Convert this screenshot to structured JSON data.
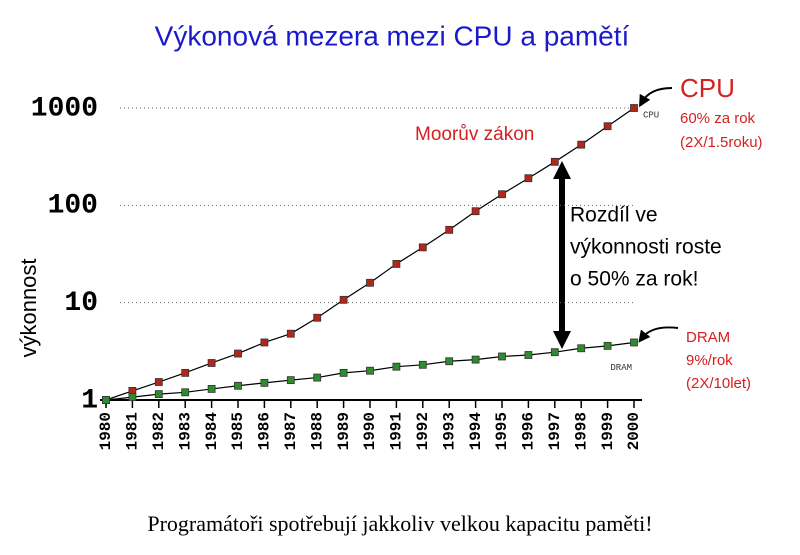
{
  "chart_data": {
    "type": "line",
    "title": "Výkonová mezera mezi CPU a pamětí",
    "y_label": "výkonnost",
    "caption": "Programátoři spotřebují jakkoliv velkou kapacitu paměti!",
    "x": [
      1980,
      1981,
      1982,
      1983,
      1984,
      1985,
      1986,
      1987,
      1988,
      1989,
      1990,
      1991,
      1992,
      1993,
      1994,
      1995,
      1996,
      1997,
      1998,
      1999,
      2000
    ],
    "xlim": [
      1980,
      2000
    ],
    "xticks": [
      1980,
      1981,
      1982,
      1983,
      1984,
      1985,
      1986,
      1987,
      1988,
      1989,
      1990,
      1991,
      1992,
      1993,
      1994,
      1995,
      1996,
      1997,
      1998,
      1999,
      2000
    ],
    "ylim": [
      1,
      1000
    ],
    "yticks": [
      1,
      10,
      100,
      1000
    ],
    "log_y": true,
    "grid": true,
    "line_color": "#000000",
    "series": [
      {
        "name": "CPU",
        "color": "#b3261e",
        "values": [
          1,
          1.24,
          1.53,
          1.9,
          2.4,
          3.0,
          3.9,
          4.8,
          7.0,
          10.7,
          16,
          25,
          37,
          56,
          87,
          130,
          190,
          280,
          420,
          650,
          1000
        ]
      },
      {
        "name": "DRAM",
        "color": "#2e8b2e",
        "values": [
          1,
          1.07,
          1.15,
          1.2,
          1.3,
          1.4,
          1.5,
          1.6,
          1.7,
          1.9,
          2.0,
          2.2,
          2.3,
          2.5,
          2.6,
          2.8,
          2.9,
          3.1,
          3.4,
          3.6,
          3.9
        ]
      }
    ],
    "annotations": [
      "CPU",
      "60% za rok",
      "(2X/1.5roku)",
      "Moorův zákon",
      "Rozdíl ve",
      "výkonnosti roste",
      "o 50% za rok!",
      "DRAM",
      "9%/rok",
      "(2X/10let)"
    ]
  }
}
